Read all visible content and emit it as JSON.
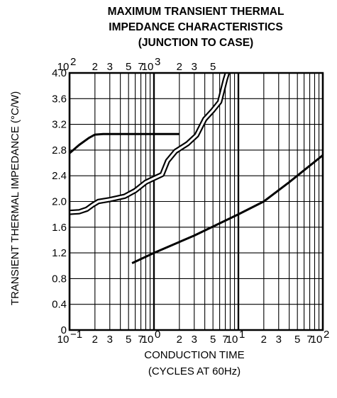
{
  "chart_data": {
    "type": "line",
    "title_lines": [
      "MAXIMUM TRANSIENT THERMAL",
      "IMPEDANCE CHARACTERISTICS",
      "(JUNCTION TO CASE)"
    ],
    "xlabel_lines": [
      "CONDUCTION TIME",
      "(CYCLES AT 60Hz)"
    ],
    "ylabel": "TRANSIENT THERMAL IMPEDANCE (°C/W)",
    "x_scale": "log",
    "xlim": [
      0.1,
      100
    ],
    "ylim": [
      0,
      4.0
    ],
    "grid": true,
    "y_ticks": [
      {
        "value": 0,
        "label": "0"
      },
      {
        "value": 0.4,
        "label": "0.4"
      },
      {
        "value": 0.8,
        "label": "0.8"
      },
      {
        "value": 1.2,
        "label": "1.2"
      },
      {
        "value": 1.6,
        "label": "1.6"
      },
      {
        "value": 2.0,
        "label": "2.0"
      },
      {
        "value": 2.4,
        "label": "2.4"
      },
      {
        "value": 2.8,
        "label": "2.8"
      },
      {
        "value": 3.2,
        "label": "3.2"
      },
      {
        "value": 3.6,
        "label": "3.6"
      },
      {
        "value": 4.0,
        "label": "4.0"
      }
    ],
    "x_ticks_bottom": [
      {
        "value": 0.1,
        "label": "10",
        "exp": "−1"
      },
      {
        "value": 0.2,
        "label": "2"
      },
      {
        "value": 0.3,
        "label": "3"
      },
      {
        "value": 0.5,
        "label": "5"
      },
      {
        "value": 0.7,
        "label": "7"
      },
      {
        "value": 1,
        "label": "10",
        "exp": "0"
      },
      {
        "value": 2,
        "label": "2"
      },
      {
        "value": 3,
        "label": "3"
      },
      {
        "value": 5,
        "label": "5"
      },
      {
        "value": 7,
        "label": "7"
      },
      {
        "value": 10,
        "label": "10",
        "exp": "1"
      },
      {
        "value": 20,
        "label": "2"
      },
      {
        "value": 30,
        "label": "3"
      },
      {
        "value": 50,
        "label": "5"
      },
      {
        "value": 70,
        "label": "7"
      },
      {
        "value": 100,
        "label": "10",
        "exp": "2"
      }
    ],
    "x_ticks_top": [
      {
        "value": 0.1,
        "label": "10",
        "exp": "2"
      },
      {
        "value": 0.2,
        "label": "2"
      },
      {
        "value": 0.3,
        "label": "3"
      },
      {
        "value": 0.5,
        "label": "5"
      },
      {
        "value": 0.7,
        "label": "7"
      },
      {
        "value": 1,
        "label": "10",
        "exp": "3"
      },
      {
        "value": 2,
        "label": "2"
      },
      {
        "value": 3,
        "label": "3"
      },
      {
        "value": 5,
        "label": "5"
      }
    ],
    "series": [
      {
        "style": "solid",
        "points": [
          [
            0.1,
            2.75
          ],
          [
            0.13,
            2.88
          ],
          [
            0.17,
            2.99
          ],
          [
            0.2,
            3.04
          ],
          [
            0.25,
            3.05
          ],
          [
            0.5,
            3.05
          ],
          [
            1,
            3.05
          ],
          [
            2,
            3.05
          ]
        ]
      },
      {
        "style": "double",
        "points": [
          [
            0.1,
            1.83
          ],
          [
            0.13,
            1.84
          ],
          [
            0.16,
            1.88
          ],
          [
            0.19,
            1.95
          ],
          [
            0.22,
            2.0
          ],
          [
            0.3,
            2.03
          ],
          [
            0.45,
            2.08
          ],
          [
            0.6,
            2.17
          ],
          [
            0.8,
            2.3
          ],
          [
            1.0,
            2.36
          ],
          [
            1.25,
            2.42
          ],
          [
            1.45,
            2.63
          ],
          [
            1.8,
            2.78
          ],
          [
            2.5,
            2.9
          ],
          [
            3.2,
            3.03
          ],
          [
            4.0,
            3.28
          ],
          [
            5.0,
            3.42
          ],
          [
            6.0,
            3.55
          ],
          [
            7.0,
            3.9
          ],
          [
            7.4,
            4.0
          ]
        ]
      },
      {
        "style": "solid",
        "points": [
          [
            0.55,
            1.04
          ],
          [
            1,
            1.2
          ],
          [
            3,
            1.47
          ],
          [
            6,
            1.66
          ],
          [
            10,
            1.8
          ],
          [
            20,
            2.0
          ],
          [
            40,
            2.3
          ],
          [
            100,
            2.72
          ]
        ]
      }
    ]
  }
}
